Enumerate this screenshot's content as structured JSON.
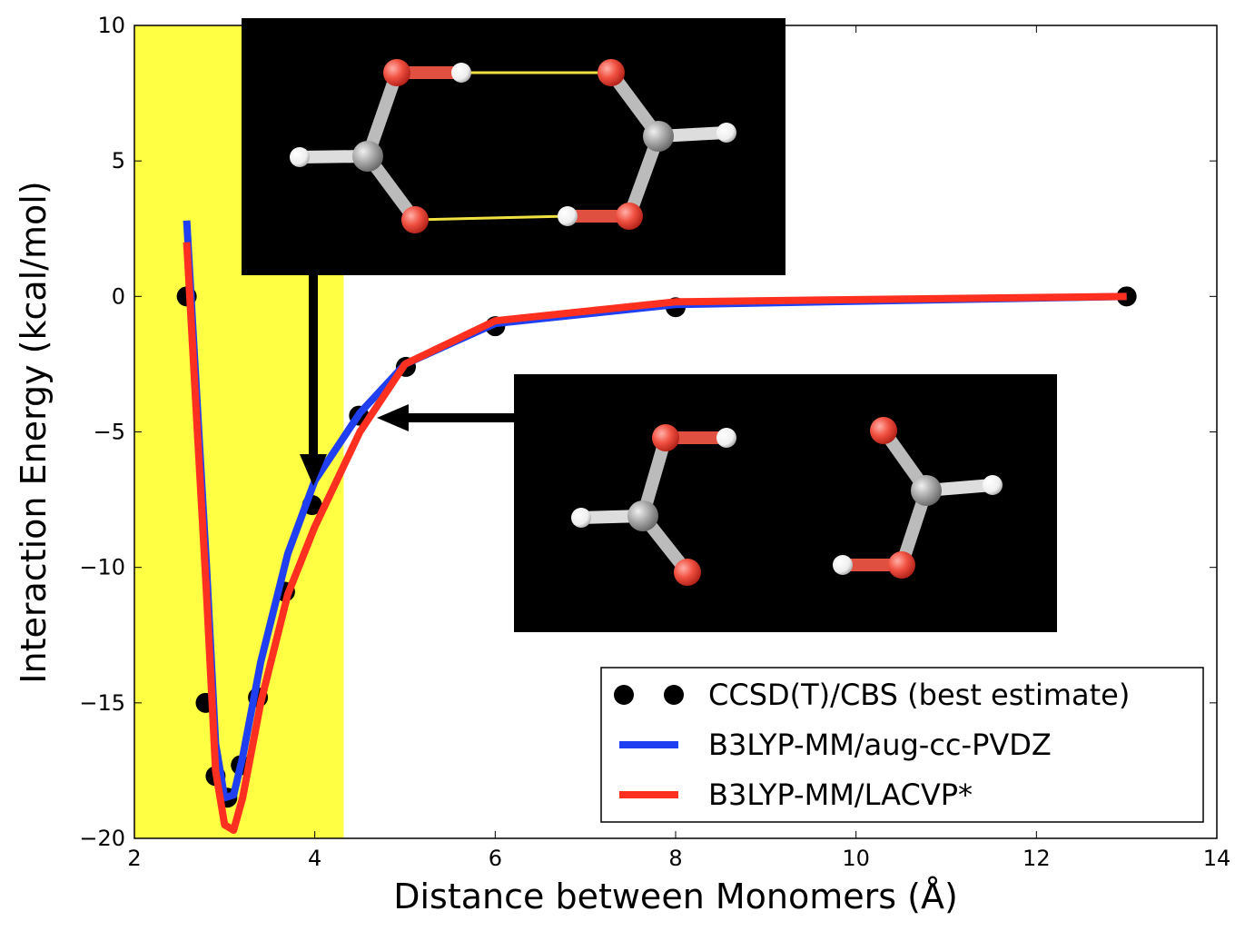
{
  "chart_data": {
    "type": "line",
    "xlabel": "Distance between Monomers (Å)",
    "ylabel": "Interaction Energy (kcal/mol)",
    "xlim": [
      2,
      14
    ],
    "ylim": [
      -20,
      10
    ],
    "xticks": [
      2,
      4,
      6,
      8,
      10,
      12,
      14
    ],
    "yticks": [
      {
        "value": -20,
        "label": "−20"
      },
      {
        "value": -15,
        "label": "−15"
      },
      {
        "value": -10,
        "label": "−10"
      },
      {
        "value": -5,
        "label": "−5"
      },
      0,
      5,
      10
    ],
    "highlight": {
      "x": [
        2,
        4.32
      ],
      "color": "#ffff44"
    },
    "legend": "lower right",
    "series": [
      {
        "name": "CCSD(T)/CBS (best estimate)",
        "type": "scatter",
        "color": "#000000",
        "x": [
          2.58,
          2.79,
          2.9,
          3.03,
          3.18,
          3.37,
          3.67,
          3.97,
          4.49,
          5.01,
          6.0,
          8.0,
          13.0
        ],
        "values": [
          0,
          -15,
          -17.7,
          -18.5,
          -17.3,
          -14.8,
          -10.9,
          -7.7,
          -4.4,
          -2.6,
          -1.1,
          -0.4,
          0
        ]
      },
      {
        "name": "B3LYP-MM/aug-cc-PVDZ",
        "type": "line",
        "color": "#1f3ff0",
        "x": [
          2.58,
          2.8,
          2.9,
          3.0,
          3.1,
          3.2,
          3.4,
          3.7,
          4.0,
          4.5,
          5.0,
          6.0,
          8.0,
          13.0
        ],
        "values": [
          2.8,
          -10,
          -16.5,
          -18.5,
          -18.4,
          -17,
          -13.5,
          -9.5,
          -6.8,
          -4.3,
          -2.5,
          -1.0,
          -0.3,
          0
        ]
      },
      {
        "name": "B3LYP-MM/LACVP*",
        "type": "line",
        "color": "#ff3020",
        "x": [
          2.58,
          2.8,
          2.9,
          3.0,
          3.1,
          3.2,
          3.4,
          3.7,
          4.0,
          4.5,
          5.0,
          6.0,
          8.0,
          13.0
        ],
        "values": [
          2.0,
          -11,
          -17.5,
          -19.5,
          -19.7,
          -18.5,
          -15,
          -11,
          -8.5,
          -5,
          -2.5,
          -0.9,
          -0.2,
          0
        ]
      }
    ]
  }
}
